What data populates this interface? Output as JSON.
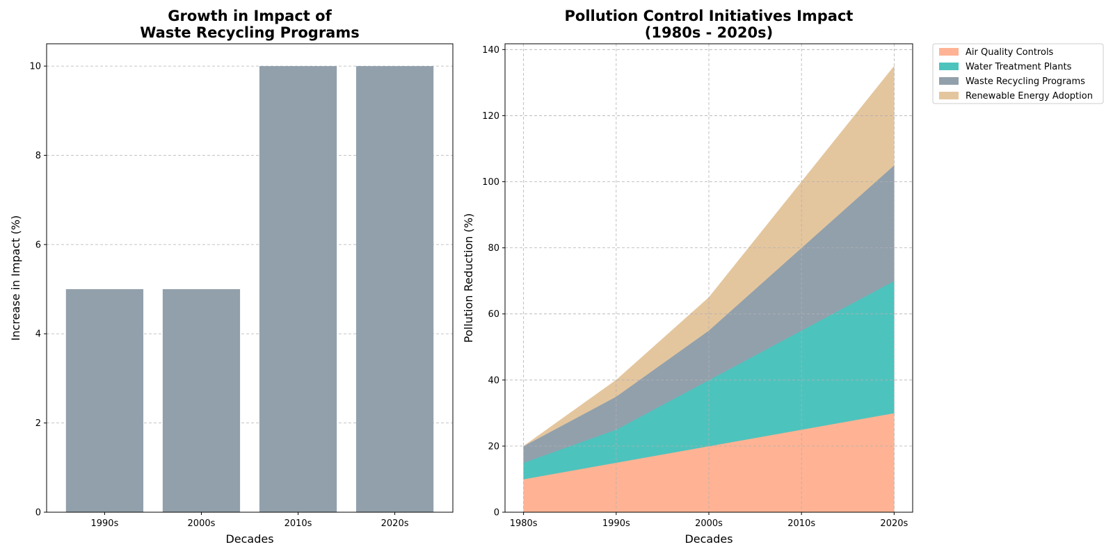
{
  "chart_data": [
    {
      "type": "bar",
      "title_lines": [
        "Growth in Impact of",
        "Waste Recycling Programs"
      ],
      "xlabel": "Decades",
      "ylabel": "Increase in Impact (%)",
      "categories": [
        "1990s",
        "2000s",
        "2010s",
        "2020s"
      ],
      "values": [
        5,
        5,
        10,
        10
      ],
      "ylim": [
        0,
        10.5
      ],
      "yticks": [
        0,
        2,
        4,
        6,
        8,
        10
      ],
      "grid": true,
      "color": "#92a0ac"
    },
    {
      "type": "area",
      "stacked": true,
      "title_lines": [
        "Pollution Control Initiatives Impact",
        "(1980s - 2020s)"
      ],
      "xlabel": "Decades",
      "ylabel": "Pollution Reduction (%)",
      "categories": [
        "1980s",
        "1990s",
        "2000s",
        "2010s",
        "2020s"
      ],
      "series": [
        {
          "name": "Air Quality Controls",
          "values": [
            10,
            15,
            20,
            25,
            30
          ],
          "color": "#ffb394"
        },
        {
          "name": "Water Treatment Plants",
          "values": [
            5,
            10,
            20,
            30,
            40
          ],
          "color": "#4dc3bd"
        },
        {
          "name": "Waste Recycling Programs",
          "values": [
            5,
            10,
            15,
            25,
            35
          ],
          "color": "#92a0ac"
        },
        {
          "name": "Renewable Energy Adoption",
          "values": [
            0,
            5,
            10,
            20,
            30
          ],
          "color": "#e4c69e"
        }
      ],
      "ylim": [
        0,
        141.75
      ],
      "yticks": [
        0,
        20,
        40,
        60,
        80,
        100,
        120,
        140
      ],
      "grid": true,
      "legend_position": "outside-upper-right"
    }
  ]
}
